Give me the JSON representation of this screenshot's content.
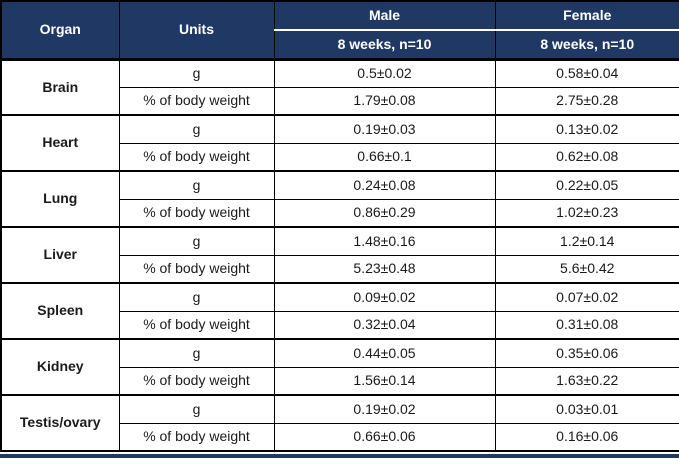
{
  "table": {
    "colors": {
      "header_bg": "#1F3864",
      "header_text": "#FFFFFF",
      "border": "#000000",
      "row_bg": "#FFFFFF",
      "bottom_bar": "#1F3864"
    },
    "header": {
      "organ_label": "Organ",
      "units_label": "Units",
      "groups": [
        {
          "label": "Male",
          "subheader": "8 weeks, n=10"
        },
        {
          "label": "Female",
          "subheader": "8 weeks, n=10"
        }
      ]
    },
    "rows": [
      {
        "organ": "Brain",
        "metrics": [
          {
            "unit": "g",
            "male": "0.5±0.02",
            "female": "0.58±0.04"
          },
          {
            "unit": "% of body weight",
            "male": "1.79±0.08",
            "female": "2.75±0.28"
          }
        ]
      },
      {
        "organ": "Heart",
        "metrics": [
          {
            "unit": "g",
            "male": "0.19±0.03",
            "female": "0.13±0.02"
          },
          {
            "unit": "% of body weight",
            "male": "0.66±0.1",
            "female": "0.62±0.08"
          }
        ]
      },
      {
        "organ": "Lung",
        "metrics": [
          {
            "unit": "g",
            "male": "0.24±0.08",
            "female": "0.22±0.05"
          },
          {
            "unit": "% of body weight",
            "male": "0.86±0.29",
            "female": "1.02±0.23"
          }
        ]
      },
      {
        "organ": "Liver",
        "metrics": [
          {
            "unit": "g",
            "male": "1.48±0.16",
            "female": "1.2±0.14"
          },
          {
            "unit": "% of body weight",
            "male": "5.23±0.48",
            "female": "5.6±0.42"
          }
        ]
      },
      {
        "organ": "Spleen",
        "metrics": [
          {
            "unit": "g",
            "male": "0.09±0.02",
            "female": "0.07±0.02"
          },
          {
            "unit": "% of body weight",
            "male": "0.32±0.04",
            "female": "0.31±0.08"
          }
        ]
      },
      {
        "organ": "Kidney",
        "metrics": [
          {
            "unit": "g",
            "male": "0.44±0.05",
            "female": "0.35±0.06"
          },
          {
            "unit": "% of body weight",
            "male": "1.56±0.14",
            "female": "1.63±0.22"
          }
        ]
      },
      {
        "organ": "Testis/ovary",
        "metrics": [
          {
            "unit": "g",
            "male": "0.19±0.02",
            "female": "0.03±0.01"
          },
          {
            "unit": "% of body weight",
            "male": "0.66±0.06",
            "female": "0.16±0.06"
          }
        ]
      }
    ]
  },
  "chart_data": {
    "type": "table",
    "columns": [
      "Organ",
      "Units",
      "Male — 8 weeks, n=10",
      "Female — 8 weeks, n=10"
    ],
    "rows": [
      [
        "Brain",
        "g",
        "0.5±0.02",
        "0.58±0.04"
      ],
      [
        "Brain",
        "% of body weight",
        "1.79±0.08",
        "2.75±0.28"
      ],
      [
        "Heart",
        "g",
        "0.19±0.03",
        "0.13±0.02"
      ],
      [
        "Heart",
        "% of body weight",
        "0.66±0.1",
        "0.62±0.08"
      ],
      [
        "Lung",
        "g",
        "0.24±0.08",
        "0.22±0.05"
      ],
      [
        "Lung",
        "% of body weight",
        "0.86±0.29",
        "1.02±0.23"
      ],
      [
        "Liver",
        "g",
        "1.48±0.16",
        "1.2±0.14"
      ],
      [
        "Liver",
        "% of body weight",
        "5.23±0.48",
        "5.6±0.42"
      ],
      [
        "Spleen",
        "g",
        "0.09±0.02",
        "0.07±0.02"
      ],
      [
        "Spleen",
        "% of body weight",
        "0.32±0.04",
        "0.31±0.08"
      ],
      [
        "Kidney",
        "g",
        "0.44±0.05",
        "0.35±0.06"
      ],
      [
        "Kidney",
        "% of body weight",
        "1.56±0.14",
        "1.63±0.22"
      ],
      [
        "Testis/ovary",
        "g",
        "0.19±0.02",
        "0.03±0.01"
      ],
      [
        "Testis/ovary",
        "% of body weight",
        "0.66±0.06",
        "0.16±0.06"
      ]
    ]
  }
}
